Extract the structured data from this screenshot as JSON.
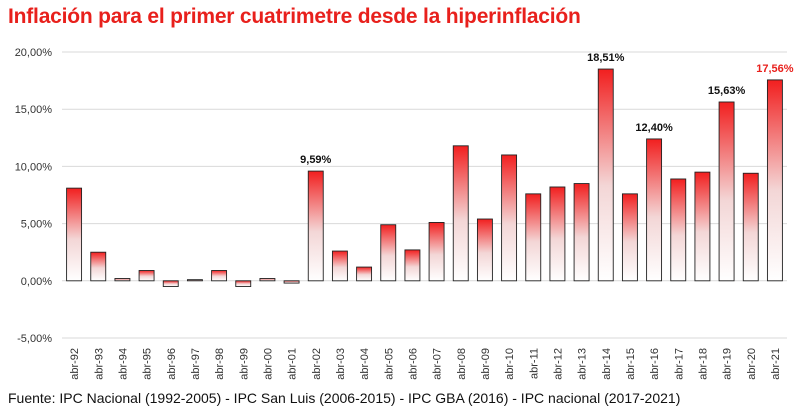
{
  "chart_data": {
    "type": "bar",
    "title": "Inflación para el primer cuatrimetre desde la hiperinflación",
    "xlabel": "",
    "ylabel": "",
    "ylim": [
      -5,
      20
    ],
    "yticks": [
      -5,
      0,
      5,
      10,
      15,
      20
    ],
    "ytick_labels": [
      "-5,00%",
      "0,00%",
      "5,00%",
      "10,00%",
      "15,00%",
      "20,00%"
    ],
    "categories": [
      "abr-92",
      "abr-93",
      "abr-94",
      "abr-95",
      "abr-96",
      "abr-97",
      "abr-98",
      "abr-99",
      "abr-00",
      "abr-01",
      "abr-02",
      "abr-03",
      "abr-04",
      "abr-05",
      "abr-06",
      "abr-07",
      "abr-08",
      "abr-09",
      "abr-10",
      "abr-11",
      "abr-12",
      "abr-13",
      "abr-14",
      "abr-15",
      "abr-16",
      "abr-17",
      "abr-18",
      "abr-19",
      "abr-20",
      "abr-21"
    ],
    "values": [
      8.1,
      2.5,
      0.2,
      0.9,
      -0.5,
      0.1,
      0.9,
      -0.5,
      0.2,
      -0.2,
      9.59,
      2.6,
      1.2,
      4.9,
      2.7,
      5.1,
      11.8,
      5.4,
      11.0,
      7.6,
      8.2,
      8.5,
      18.51,
      7.6,
      12.4,
      8.9,
      9.5,
      15.63,
      9.4,
      17.56
    ],
    "grid": true,
    "annotations": [
      {
        "index": 10,
        "label": "9,59%",
        "color": "#111111"
      },
      {
        "index": 22,
        "label": "18,51%",
        "color": "#111111"
      },
      {
        "index": 24,
        "label": "12,40%",
        "color": "#111111"
      },
      {
        "index": 27,
        "label": "15,63%",
        "color": "#111111"
      },
      {
        "index": 29,
        "label": "17,56%",
        "color": "#e8201c"
      }
    ],
    "colors": {
      "bar_top": "#f21f1f",
      "bar_bottom": "#ffffff",
      "title": "#e8201c"
    }
  },
  "source": "Fuente: IPC Nacional (1992-2005) - IPC San Luis (2006-2015) - IPC GBA (2016) - IPC nacional (2017-2021)"
}
